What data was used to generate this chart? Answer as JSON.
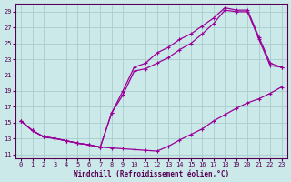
{
  "xlabel": "Windchill (Refroidissement éolien,°C)",
  "bg_color": "#cce9e9",
  "grid_color": "#aacccc",
  "line_color": "#990099",
  "xlim": [
    -0.5,
    23.5
  ],
  "ylim": [
    10.5,
    30.0
  ],
  "xticks": [
    0,
    1,
    2,
    3,
    4,
    5,
    6,
    7,
    8,
    9,
    10,
    11,
    12,
    13,
    14,
    15,
    16,
    17,
    18,
    19,
    20,
    21,
    22,
    23
  ],
  "yticks": [
    11,
    13,
    15,
    17,
    19,
    21,
    23,
    25,
    27,
    29
  ],
  "curve1_x": [
    0,
    1,
    2,
    3,
    4,
    5,
    6,
    7,
    8,
    9,
    10,
    11,
    12,
    13,
    14,
    15,
    16,
    17,
    18,
    19,
    20,
    21,
    22,
    23
  ],
  "curve1_y": [
    15.2,
    14.0,
    13.2,
    13.0,
    12.7,
    12.4,
    12.2,
    11.9,
    11.8,
    11.7,
    11.6,
    11.5,
    11.4,
    12.0,
    12.8,
    13.5,
    14.2,
    15.2,
    16.0,
    16.8,
    17.5,
    18.0,
    18.7,
    19.5
  ],
  "curve2_x": [
    0,
    1,
    2,
    3,
    4,
    5,
    6,
    7,
    8,
    9,
    10,
    11,
    12,
    13,
    14,
    15,
    16,
    17,
    18,
    19,
    20,
    21,
    22,
    23
  ],
  "curve2_y": [
    15.2,
    14.0,
    13.2,
    13.0,
    12.7,
    12.4,
    12.2,
    11.9,
    16.2,
    18.5,
    21.5,
    21.8,
    22.5,
    23.2,
    24.2,
    25.0,
    26.2,
    27.5,
    29.2,
    29.0,
    29.0,
    25.5,
    22.2,
    22.0
  ],
  "curve3_x": [
    0,
    1,
    2,
    3,
    4,
    5,
    6,
    7,
    8,
    9,
    10,
    11,
    12,
    13,
    14,
    15,
    16,
    17,
    18,
    19,
    20,
    21,
    22,
    23
  ],
  "curve3_y": [
    15.2,
    14.0,
    13.2,
    13.0,
    12.7,
    12.4,
    12.2,
    11.9,
    16.2,
    19.0,
    22.0,
    22.5,
    23.8,
    24.5,
    25.5,
    26.2,
    27.2,
    28.2,
    29.5,
    29.2,
    29.2,
    25.8,
    22.5,
    22.0
  ]
}
